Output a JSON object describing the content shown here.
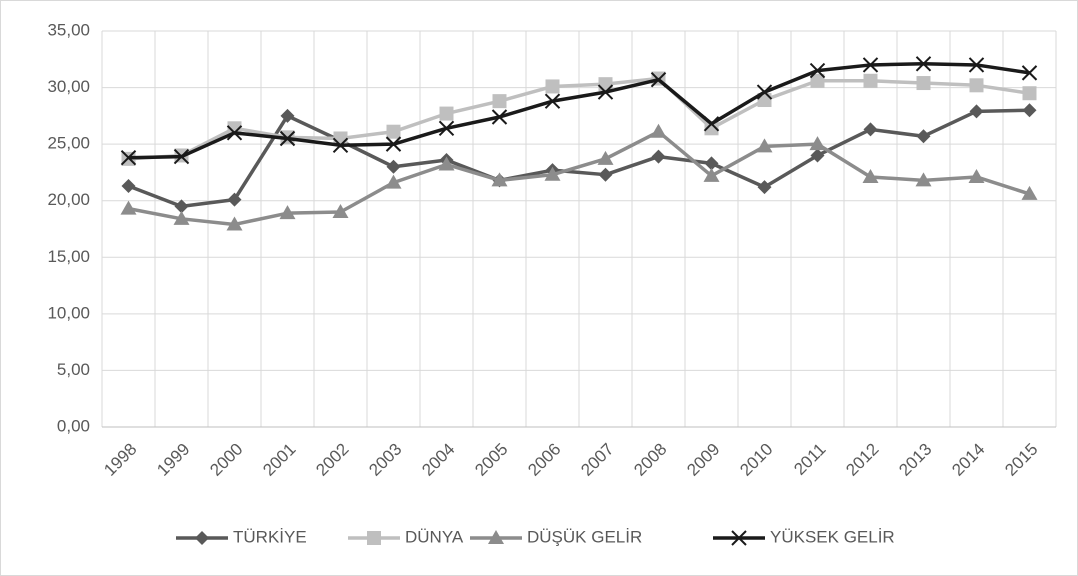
{
  "chart_data": {
    "type": "line",
    "categories": [
      "1998",
      "1999",
      "2000",
      "2001",
      "2002",
      "2003",
      "2004",
      "2005",
      "2006",
      "2007",
      "2008",
      "2009",
      "2010",
      "2011",
      "2012",
      "2013",
      "2014",
      "2015"
    ],
    "series": [
      {
        "name": "TÜRKİYE",
        "color": "#595959",
        "marker": "diamond",
        "values": [
          21.3,
          19.5,
          20.1,
          27.5,
          25.3,
          23.0,
          23.6,
          21.8,
          22.7,
          22.3,
          23.9,
          23.3,
          21.2,
          24.0,
          26.3,
          25.7,
          27.9,
          28.0
        ]
      },
      {
        "name": "DÜNYA",
        "color": "#bfbfbf",
        "marker": "square",
        "values": [
          23.7,
          24.0,
          26.4,
          25.6,
          25.5,
          26.1,
          27.7,
          28.8,
          30.1,
          30.3,
          30.8,
          26.4,
          28.9,
          30.6,
          30.6,
          30.4,
          30.2,
          29.5
        ]
      },
      {
        "name": "DÜŞÜK GELİR",
        "color": "#8c8c8c",
        "marker": "triangle",
        "values": [
          19.3,
          18.4,
          17.9,
          18.9,
          19.0,
          21.6,
          23.2,
          21.8,
          22.3,
          23.7,
          26.1,
          22.2,
          24.8,
          25.0,
          22.1,
          21.8,
          22.1,
          20.6
        ]
      },
      {
        "name": "YÜKSEK GELİR",
        "color": "#1a1a1a",
        "marker": "x",
        "values": [
          23.8,
          23.9,
          26.0,
          25.5,
          24.9,
          25.0,
          26.4,
          27.4,
          28.8,
          29.6,
          30.7,
          26.8,
          29.6,
          31.5,
          32.0,
          32.1,
          32.0,
          31.3
        ]
      }
    ],
    "ylim": [
      0,
      35
    ],
    "yticks": [
      {
        "value": 0,
        "label": "0,00"
      },
      {
        "value": 5,
        "label": "5,00"
      },
      {
        "value": 10,
        "label": "10,00"
      },
      {
        "value": 15,
        "label": "15,00"
      },
      {
        "value": 20,
        "label": "20,00"
      },
      {
        "value": 25,
        "label": "25,00"
      },
      {
        "value": 30,
        "label": "30,00"
      },
      {
        "value": 35,
        "label": "35,00"
      }
    ],
    "grid": true,
    "legend": "bottom"
  }
}
